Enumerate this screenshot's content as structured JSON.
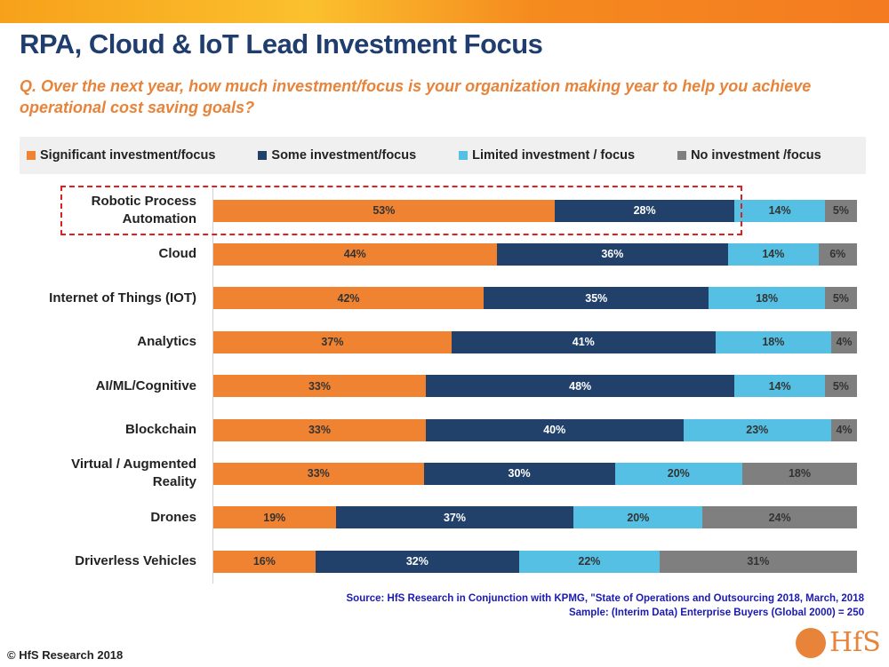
{
  "header": {
    "title": "RPA, Cloud & IoT Lead Investment Focus",
    "question": "Q. Over the next year, how much investment/focus is your organization making year to help you achieve operational cost saving goals?"
  },
  "chart_data": {
    "type": "bar",
    "orientation": "horizontal",
    "stacked": true,
    "series": [
      {
        "name": "Significant investment/focus",
        "color": "#f08331",
        "values": [
          53,
          44,
          42,
          37,
          33,
          33,
          33,
          19,
          16
        ]
      },
      {
        "name": "Some investment/focus",
        "color": "#21416b",
        "values": [
          28,
          36,
          35,
          41,
          48,
          40,
          30,
          37,
          32
        ]
      },
      {
        "name": "Limited investment / focus",
        "color": "#55c0e3",
        "values": [
          14,
          14,
          18,
          18,
          14,
          23,
          20,
          20,
          22
        ]
      },
      {
        "name": "No investment /focus",
        "color": "#7f7f7f",
        "values": [
          5,
          6,
          5,
          4,
          5,
          4,
          18,
          24,
          31
        ]
      }
    ],
    "categories": [
      "Robotic Process Automation",
      "Cloud",
      "Internet of Things (IOT)",
      "Analytics",
      "AI/ML/Cognitive",
      "Blockchain",
      "Virtual / Augmented Reality",
      "Drones",
      "Driverless Vehicles"
    ],
    "highlighted": "Robotic Process Automation",
    "legend": "top",
    "xlim": [
      0,
      100
    ],
    "value_suffix": "%"
  },
  "footer": {
    "source": "Source: HfS Research in Conjunction with KPMG, \"State of Operations and Outsourcing 2018, March, 2018",
    "sample": "Sample: (Interim Data) Enterprise Buyers (Global 2000) = 250",
    "copyright": "© HfS Research 2018",
    "logo": "HfS"
  }
}
